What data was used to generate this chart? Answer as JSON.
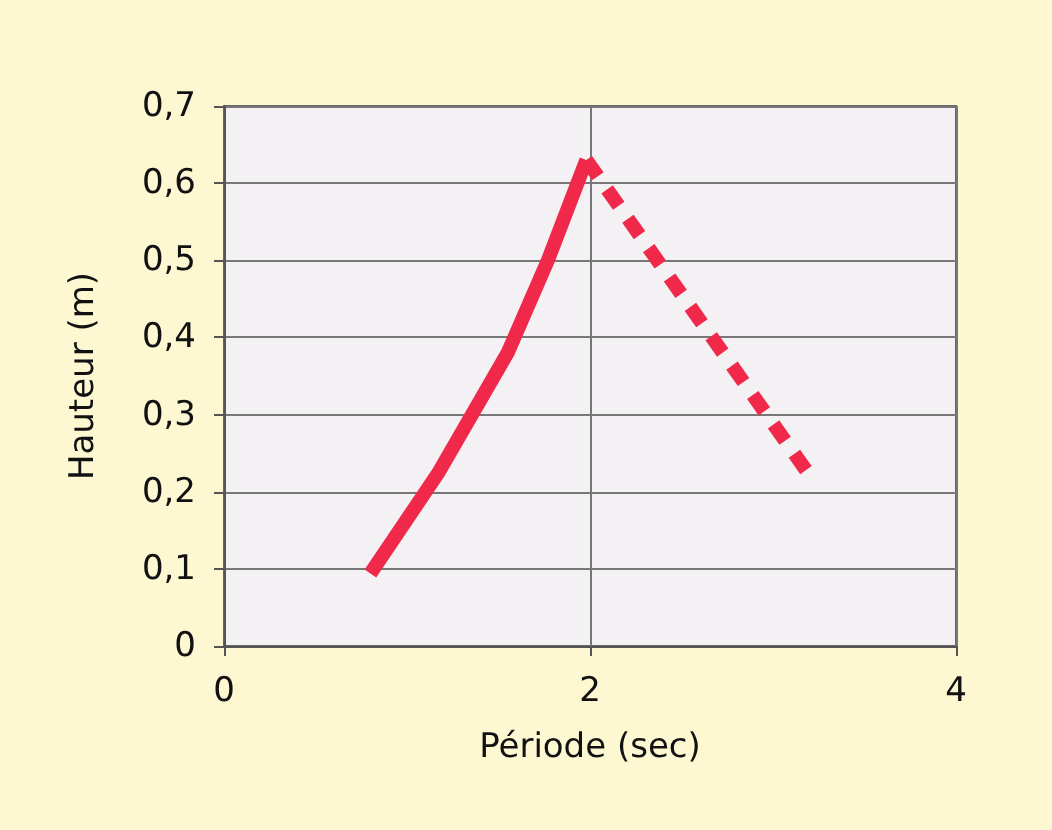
{
  "chart_data": {
    "type": "line",
    "xlabel": "Période (sec)",
    "ylabel": "Hauteur (m)",
    "xlim": [
      0,
      4
    ],
    "xticks": [
      0,
      2,
      4
    ],
    "ylim": [
      0,
      0.7
    ],
    "yticks": [
      0,
      {
        "value": 0.1,
        "label": "0,1"
      },
      {
        "value": 0.2,
        "label": "0,2"
      },
      {
        "value": 0.3,
        "label": "0,3"
      },
      {
        "value": 0.4,
        "label": "0,4"
      },
      {
        "value": 0.5,
        "label": "0,5"
      },
      {
        "value": 0.6,
        "label": "0,6"
      },
      {
        "value": 0.7,
        "label": "0,7"
      }
    ],
    "grid": true,
    "marker": "none",
    "series": [
      {
        "color": "#f0284a",
        "line_style": "solid",
        "x": [
          0.8,
          1.17,
          1.55,
          1.77,
          1.98
        ],
        "values": [
          0.094,
          0.224,
          0.38,
          0.5,
          0.63
        ]
      },
      {
        "color": "#f0284a",
        "line_style": "dashed",
        "x": [
          1.98,
          3.18
        ],
        "values": [
          0.63,
          0.228
        ]
      }
    ]
  }
}
